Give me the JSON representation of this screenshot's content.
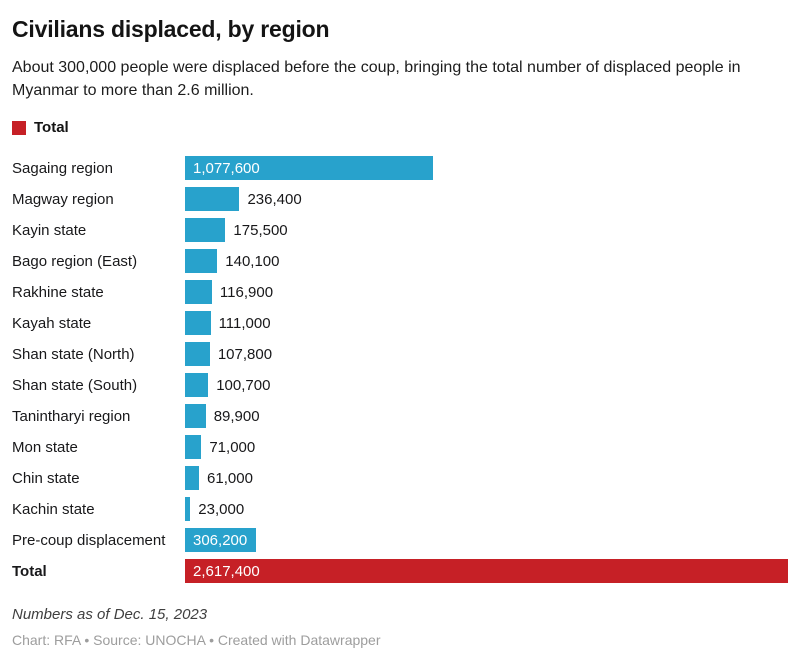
{
  "header": {
    "title": "Civilians displaced, by region",
    "subtitle": "About 300,000 people were displaced before the coup, bringing the total number of displaced people in Myanmar to more than 2.6 million."
  },
  "legend": {
    "label": "Total",
    "color": "#c62026"
  },
  "chart_data": {
    "type": "bar",
    "orientation": "horizontal",
    "value_axis_max": 2617400,
    "grid": false,
    "bar_colors": {
      "default": "#28a2cc",
      "total": "#c62026"
    },
    "categories": [
      "Sagaing region",
      "Magway region",
      "Kayin state",
      "Bago region (East)",
      "Rakhine state",
      "Kayah state",
      "Shan state (North)",
      "Shan state (South)",
      "Tanintharyi region",
      "Mon state",
      "Chin state",
      "Kachin state",
      "Pre-coup displacement",
      "Total"
    ],
    "values": [
      1077600,
      236400,
      175500,
      140100,
      116900,
      111000,
      107800,
      100700,
      89900,
      71000,
      61000,
      23000,
      306200,
      2617400
    ],
    "rows": [
      {
        "label": "Sagaing region",
        "value": 1077600,
        "display": "1,077,600",
        "inside": true,
        "total": false
      },
      {
        "label": "Magway region",
        "value": 236400,
        "display": "236,400",
        "inside": false,
        "total": false
      },
      {
        "label": "Kayin state",
        "value": 175500,
        "display": "175,500",
        "inside": false,
        "total": false
      },
      {
        "label": "Bago region (East)",
        "value": 140100,
        "display": "140,100",
        "inside": false,
        "total": false
      },
      {
        "label": "Rakhine state",
        "value": 116900,
        "display": "116,900",
        "inside": false,
        "total": false
      },
      {
        "label": "Kayah state",
        "value": 111000,
        "display": "111,000",
        "inside": false,
        "total": false
      },
      {
        "label": "Shan state (North)",
        "value": 107800,
        "display": "107,800",
        "inside": false,
        "total": false
      },
      {
        "label": "Shan state (South)",
        "value": 100700,
        "display": "100,700",
        "inside": false,
        "total": false
      },
      {
        "label": "Tanintharyi region",
        "value": 89900,
        "display": "89,900",
        "inside": false,
        "total": false
      },
      {
        "label": "Mon state",
        "value": 71000,
        "display": "71,000",
        "inside": false,
        "total": false
      },
      {
        "label": "Chin state",
        "value": 61000,
        "display": "61,000",
        "inside": false,
        "total": false
      },
      {
        "label": "Kachin state",
        "value": 23000,
        "display": "23,000",
        "inside": false,
        "total": false
      },
      {
        "label": "Pre-coup displacement",
        "value": 306200,
        "display": "306,200",
        "inside": true,
        "total": false
      },
      {
        "label": "Total",
        "value": 2617400,
        "display": "2,617,400",
        "inside": true,
        "total": true
      }
    ]
  },
  "footer": {
    "note": "Numbers as of Dec. 15, 2023",
    "attribution": "Chart: RFA • Source: UNOCHA • Created with Datawrapper"
  }
}
